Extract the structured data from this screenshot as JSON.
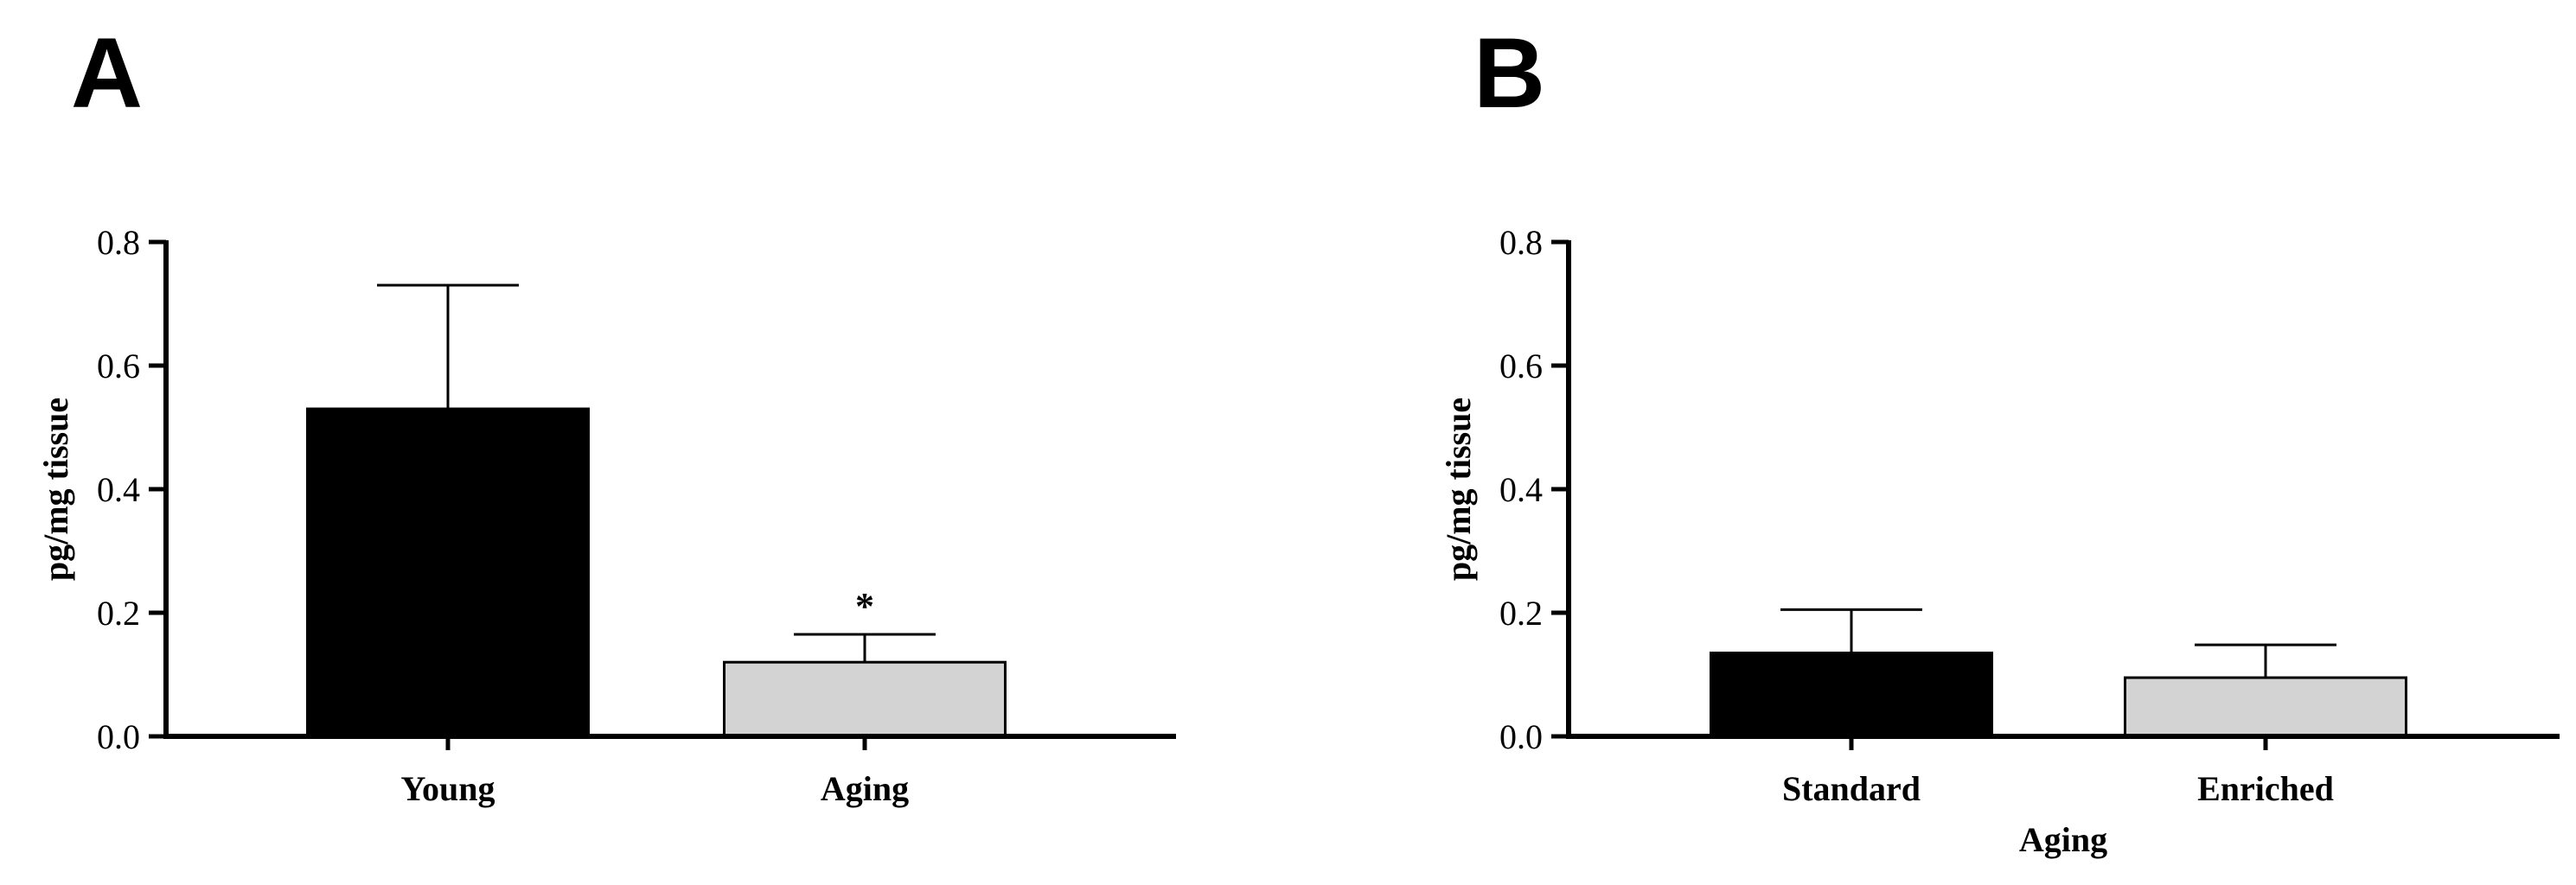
{
  "chart_data": [
    {
      "type": "bar",
      "panel_label": "A",
      "categories": [
        "Young",
        "Aging"
      ],
      "values": [
        0.53,
        0.12
      ],
      "errors": [
        0.2,
        0.045
      ],
      "bar_colors": [
        "#000000",
        "#d3d3d3"
      ],
      "annotations": [
        "",
        "*"
      ],
      "ylabel": "pg/mg tissue",
      "xlabel": "",
      "ylim": [
        0,
        0.8
      ],
      "yticks": [
        "0.0",
        "0.2",
        "0.4",
        "0.6",
        "0.8"
      ],
      "grid": false,
      "legend": "none"
    },
    {
      "type": "bar",
      "panel_label": "B",
      "categories": [
        "Standard",
        "Enriched"
      ],
      "values": [
        0.135,
        0.095
      ],
      "errors": [
        0.07,
        0.053
      ],
      "bar_colors": [
        "#000000",
        "#d3d3d3"
      ],
      "annotations": [
        "",
        ""
      ],
      "ylabel": "pg/mg tissue",
      "xlabel": "Aging",
      "ylim": [
        0,
        0.8
      ],
      "yticks": [
        "0.0",
        "0.2",
        "0.4",
        "0.6",
        "0.8"
      ],
      "grid": false,
      "legend": "none"
    }
  ]
}
